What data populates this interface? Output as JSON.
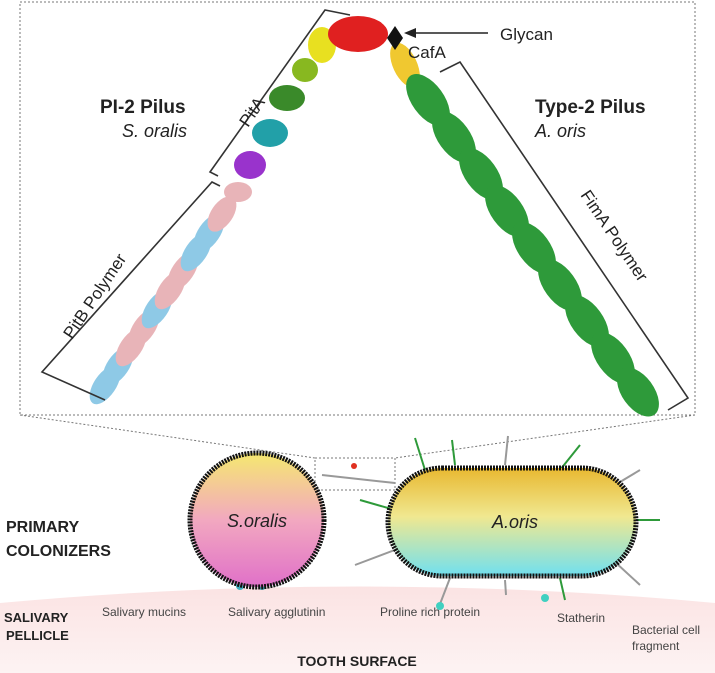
{
  "pilus_panel": {
    "glycan": "Glycan",
    "cafa": "CafA",
    "pi2_title": "PI-2 Pilus",
    "pi2_species": "S. oralis",
    "pita": "PitA",
    "type2_title": "Type-2 Pilus",
    "type2_species": "A. oris",
    "pitb": "PitB Polymer",
    "fima": "FimA Polymer"
  },
  "colonizers_panel": {
    "primary_colonizers": [
      "PRIMARY",
      "COLONIZERS"
    ],
    "s_oralis": "S.oralis",
    "a_oris": "A.oris",
    "salivary_pellicle": [
      "SALIVARY",
      "PELLICLE"
    ],
    "pellicle_components": [
      "Salivary mucins",
      "Salivary agglutinin",
      "Proline rich protein",
      "Statherin"
    ],
    "bacterial_fragment": [
      "Bacterial cell",
      "fragment"
    ],
    "tooth_surface": "TOOTH SURFACE"
  }
}
